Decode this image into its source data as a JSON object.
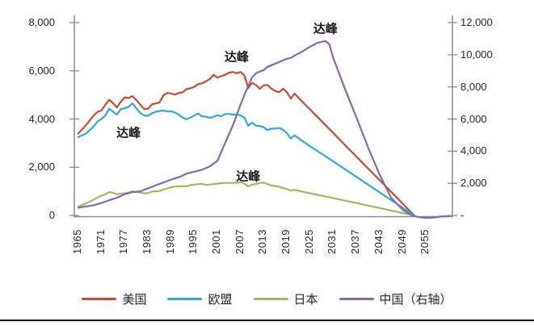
{
  "chart_data": {
    "type": "line",
    "title": "",
    "grid": false,
    "legend_position": "bottom",
    "x_axis": {
      "labels": [
        "1965",
        "1971",
        "1977",
        "1983",
        "1989",
        "1995",
        "2001",
        "2007",
        "2013",
        "2019",
        "2025",
        "2031",
        "2037",
        "2043",
        "2049",
        "2055"
      ],
      "values": [
        1965,
        1971,
        1977,
        1983,
        1989,
        1995,
        2001,
        2007,
        2013,
        2019,
        2025,
        2031,
        2037,
        2043,
        2049,
        2055
      ]
    },
    "left_axis": {
      "labels": [
        "8,000",
        "6,000",
        "4,000",
        "2,000",
        "0"
      ],
      "values": [
        8000,
        6000,
        4000,
        2000,
        0
      ],
      "range": [
        0,
        8000
      ]
    },
    "right_axis": {
      "labels": [
        "12,000",
        "10,000",
        "8,000",
        "6,000",
        "4,000",
        "2,000",
        "-"
      ],
      "values": [
        12000,
        10000,
        8000,
        6000,
        4000,
        2000,
        0
      ],
      "range": [
        0,
        12000
      ]
    },
    "series": [
      {
        "name": "美国",
        "axis": "left",
        "color": "#C94A33",
        "x": [
          1965,
          1967,
          1969,
          1970,
          1971,
          1972,
          1973,
          1974,
          1975,
          1976,
          1977,
          1978,
          1979,
          1980,
          1981,
          1982,
          1983,
          1984,
          1985,
          1986,
          1987,
          1988,
          1989,
          1990,
          1991,
          1992,
          1993,
          1994,
          1995,
          1996,
          1997,
          1998,
          1999,
          2000,
          2001,
          2002,
          2003,
          2004,
          2005,
          2006,
          2007,
          2008,
          2009,
          2010,
          2011,
          2012,
          2013,
          2014,
          2015,
          2016,
          2017,
          2018,
          2019,
          2020,
          2021,
          2023,
          2025,
          2028,
          2031,
          2034,
          2037,
          2040,
          2043,
          2046,
          2049,
          2052
        ],
        "values": [
          3400,
          3750,
          4150,
          4300,
          4350,
          4600,
          4800,
          4650,
          4480,
          4720,
          4900,
          4870,
          4950,
          4790,
          4600,
          4420,
          4420,
          4600,
          4650,
          4680,
          4980,
          5080,
          5060,
          5010,
          5080,
          5110,
          5240,
          5280,
          5330,
          5450,
          5480,
          5560,
          5650,
          5830,
          5720,
          5780,
          5830,
          5920,
          5950,
          5900,
          5950,
          5810,
          5290,
          5500,
          5410,
          5260,
          5400,
          5410,
          5260,
          5160,
          5110,
          5260,
          5110,
          4850,
          5050,
          4720,
          4400,
          3910,
          3420,
          2930,
          2440,
          1950,
          1470,
          980,
          490,
          0
        ]
      },
      {
        "name": "欧盟",
        "axis": "left",
        "color": "#2FA9E0",
        "x": [
          1965,
          1967,
          1969,
          1970,
          1971,
          1972,
          1973,
          1974,
          1975,
          1976,
          1977,
          1978,
          1979,
          1980,
          1981,
          1982,
          1983,
          1984,
          1985,
          1986,
          1987,
          1988,
          1989,
          1990,
          1991,
          1992,
          1993,
          1994,
          1995,
          1996,
          1997,
          1998,
          1999,
          2000,
          2001,
          2002,
          2003,
          2004,
          2005,
          2006,
          2007,
          2008,
          2009,
          2010,
          2011,
          2012,
          2013,
          2014,
          2015,
          2016,
          2017,
          2018,
          2019,
          2020,
          2021,
          2023,
          2025,
          2028,
          2031,
          2034,
          2037,
          2040,
          2043,
          2046,
          2049,
          2052
        ],
        "values": [
          3250,
          3400,
          3700,
          3900,
          4000,
          4150,
          4430,
          4300,
          4180,
          4420,
          4450,
          4500,
          4650,
          4450,
          4250,
          4150,
          4130,
          4230,
          4300,
          4330,
          4350,
          4320,
          4320,
          4270,
          4180,
          4060,
          3990,
          4060,
          4140,
          4230,
          4110,
          4100,
          4050,
          4090,
          4160,
          4110,
          4210,
          4210,
          4180,
          4190,
          4150,
          4060,
          3720,
          3850,
          3720,
          3710,
          3660,
          3540,
          3600,
          3600,
          3630,
          3550,
          3420,
          3190,
          3320,
          3090,
          2870,
          2560,
          2240,
          1920,
          1600,
          1280,
          960,
          640,
          320,
          0
        ]
      },
      {
        "name": "日本",
        "axis": "left",
        "color": "#9CBB5C",
        "x": [
          1965,
          1967,
          1969,
          1970,
          1971,
          1972,
          1973,
          1974,
          1975,
          1976,
          1977,
          1978,
          1979,
          1980,
          1981,
          1982,
          1983,
          1984,
          1985,
          1986,
          1987,
          1988,
          1989,
          1990,
          1991,
          1992,
          1993,
          1994,
          1995,
          1996,
          1997,
          1998,
          1999,
          2000,
          2001,
          2002,
          2003,
          2004,
          2005,
          2006,
          2007,
          2008,
          2009,
          2010,
          2011,
          2012,
          2013,
          2014,
          2015,
          2016,
          2017,
          2018,
          2019,
          2020,
          2021,
          2023,
          2025,
          2028,
          2031,
          2034,
          2037,
          2040,
          2043,
          2046,
          2049,
          2052
        ],
        "values": [
          370,
          500,
          660,
          750,
          820,
          880,
          975,
          940,
          880,
          900,
          920,
          950,
          1000,
          970,
          950,
          920,
          920,
          990,
          1000,
          1010,
          1070,
          1120,
          1170,
          1200,
          1210,
          1210,
          1210,
          1260,
          1280,
          1300,
          1310,
          1270,
          1280,
          1310,
          1320,
          1340,
          1350,
          1350,
          1350,
          1360,
          1380,
          1320,
          1200,
          1280,
          1310,
          1350,
          1360,
          1300,
          1240,
          1220,
          1190,
          1140,
          1090,
          1030,
          1060,
          990,
          920,
          820,
          720,
          615,
          515,
          410,
          310,
          205,
          100,
          0
        ]
      },
      {
        "name": "中国（右轴）",
        "axis": "right",
        "color": "#8668AE",
        "x": [
          1965,
          1967,
          1969,
          1971,
          1973,
          1975,
          1977,
          1979,
          1981,
          1983,
          1985,
          1987,
          1989,
          1991,
          1993,
          1995,
          1997,
          1999,
          2001,
          2003,
          2005,
          2007,
          2008,
          2009,
          2010,
          2011,
          2012,
          2013,
          2014,
          2015,
          2016,
          2017,
          2018,
          2019,
          2020,
          2021,
          2023,
          2025,
          2027,
          2029,
          2030,
          2031,
          2034,
          2037,
          2040,
          2043,
          2046,
          2049,
          2051,
          2053,
          2055,
          2057,
          2059,
          2061
        ],
        "values": [
          480,
          560,
          640,
          780,
          950,
          1100,
          1320,
          1450,
          1500,
          1680,
          1870,
          2050,
          2230,
          2380,
          2600,
          2720,
          2840,
          3050,
          3400,
          4500,
          5600,
          6900,
          7500,
          8050,
          8600,
          8850,
          8950,
          9050,
          9250,
          9350,
          9450,
          9550,
          9650,
          9750,
          9800,
          9950,
          10200,
          10500,
          10750,
          10850,
          10650,
          9800,
          7900,
          6100,
          4250,
          2550,
          1100,
          350,
          50,
          -100,
          -150,
          -130,
          -60,
          -40
        ]
      }
    ],
    "annotations": [
      {
        "text": "达峰",
        "series": "欧盟",
        "year": 1978,
        "value": 3450,
        "axis": "left"
      },
      {
        "text": "达峰",
        "series": "美国",
        "year": 2006,
        "value": 6590,
        "axis": "left"
      },
      {
        "text": "达峰",
        "series": "日本",
        "year": 2009,
        "value": 1640,
        "axis": "left"
      },
      {
        "text": "达峰",
        "series": "中国（右轴）",
        "year": 2029,
        "value": 11660,
        "axis": "right"
      }
    ],
    "legend": {
      "entries": [
        "美国",
        "欧盟",
        "日本",
        "中国（右轴）"
      ]
    }
  }
}
